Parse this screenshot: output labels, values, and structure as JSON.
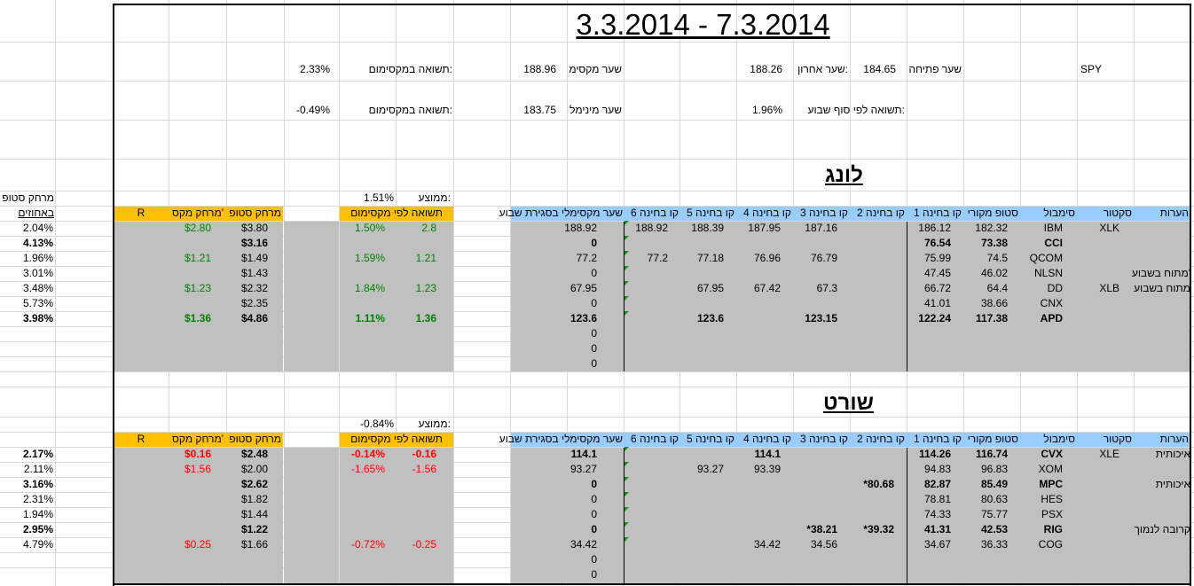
{
  "title": "3.3.2014 - 7.3.2014",
  "spy": {
    "symbol": "SPY",
    "open_label": "שער פתיחה",
    "open_value": "184.65",
    "last_label": "שער אחרון:",
    "last_value": "188.26",
    "max_label": "שער מקסימ",
    "max_value": "188.96",
    "max_return_label": "תשואה במקסימום:",
    "max_return_value": "2.33%",
    "week_return_label": "תשואה לפי סוף שבוע:",
    "week_return_value": "1.96%",
    "min_label": "שער מינימל",
    "min_value": "183.75",
    "min_return_label": "תשואה במקסימום:",
    "min_return_value": "-0.49%"
  },
  "long": {
    "section_title": "לונג",
    "avg_label": "ממוצע:",
    "avg_value": "1.51%",
    "headers": {
      "notes": "הערות",
      "sector": "סקטור",
      "symbol": "סימבול",
      "orig_stop": "סטופ מקורי",
      "l1": "קו בחינה 1",
      "l2": "קו בחינה 2",
      "l3": "קו בחינה 3",
      "l4": "קו בחינה 4",
      "l5": "קו בחינה 5",
      "l6": "קו בחינה 6",
      "max_close": "שער מקסימלי בסגירת שבוע",
      "ret_by_max": "תשואה לפי מקסימום",
      "stop_dist": "מרחק סטופ",
      "max_dist": "מרחק מקס'",
      "r": "R",
      "stop_pct_a": "מרחק סטופ",
      "stop_pct_b": "באחוזים"
    },
    "rows": [
      {
        "notes": "",
        "sector": "XLK",
        "symbol": "IBM",
        "orig_stop": "182.32",
        "l1": "186.12",
        "l2": "",
        "l3": "187.16",
        "l4": "187.95",
        "l5": "188.39",
        "l6": "188.92",
        "max_close": "188.92",
        "r": "2.8",
        "ret": "1.50%",
        "stop_dist": "$3.80",
        "max_dist": "$2.80",
        "stop_pct": "2.04%",
        "bold": false
      },
      {
        "notes": "",
        "sector": "",
        "symbol": "CCI",
        "orig_stop": "73.38",
        "l1": "76.54",
        "l2": "",
        "l3": "",
        "l4": "",
        "l5": "",
        "l6": "",
        "max_close": "0",
        "r": "",
        "ret": "",
        "stop_dist": "$3.16",
        "max_dist": "",
        "stop_pct": "4.13%",
        "bold": true
      },
      {
        "notes": "",
        "sector": "",
        "symbol": "QCOM",
        "orig_stop": "74.5",
        "l1": "75.99",
        "l2": "",
        "l3": "76.79",
        "l4": "76.96",
        "l5": "77.18",
        "l6": "77.2",
        "max_close": "77.2",
        "r": "1.21",
        "ret": "1.59%",
        "stop_dist": "$1.49",
        "max_dist": "$1.21",
        "stop_pct": "1.96%",
        "bold": false
      },
      {
        "notes": "מתוח בשבוע'",
        "sector": "",
        "symbol": "NLSN",
        "orig_stop": "46.02",
        "l1": "47.45",
        "l2": "",
        "l3": "",
        "l4": "",
        "l5": "",
        "l6": "",
        "max_close": "0",
        "r": "",
        "ret": "",
        "stop_dist": "$1.43",
        "max_dist": "",
        "stop_pct": "3.01%",
        "bold": false
      },
      {
        "notes": "מתוח בשבוע",
        "sector": "XLB",
        "symbol": "DD",
        "orig_stop": "64.4",
        "l1": "66.72",
        "l2": "",
        "l3": "67.3",
        "l4": "67.42",
        "l5": "67.95",
        "l6": "",
        "max_close": "67.95",
        "r": "1.23",
        "ret": "1.84%",
        "stop_dist": "$2.32",
        "max_dist": "$1.23",
        "stop_pct": "3.48%",
        "bold": false
      },
      {
        "notes": "",
        "sector": "",
        "symbol": "CNX",
        "orig_stop": "38.66",
        "l1": "41.01",
        "l2": "",
        "l3": "",
        "l4": "",
        "l5": "",
        "l6": "",
        "max_close": "0",
        "r": "",
        "ret": "",
        "stop_dist": "$2.35",
        "max_dist": "",
        "stop_pct": "5.73%",
        "bold": false
      },
      {
        "notes": "",
        "sector": "",
        "symbol": "APD",
        "orig_stop": "117.38",
        "l1": "122.24",
        "l2": "",
        "l3": "123.15",
        "l4": "",
        "l5": "123.6",
        "l6": "",
        "max_close": "123.6",
        "r": "1.36",
        "ret": "1.11%",
        "stop_dist": "$4.86",
        "max_dist": "$1.36",
        "stop_pct": "3.98%",
        "bold": true
      }
    ],
    "extra_zeros": [
      "0",
      "0",
      "0"
    ]
  },
  "short": {
    "section_title": "שורט",
    "avg_label": "ממוצע:",
    "avg_value": "-0.84%",
    "rows": [
      {
        "notes": "איכותית",
        "sector": "XLE",
        "symbol": "CVX",
        "orig_stop": "116.74",
        "l1": "114.26",
        "l2": "",
        "l3": "",
        "l4": "114.1",
        "l5": "",
        "l6": "",
        "max_close": "114.1",
        "r": "-0.16",
        "ret": "-0.14%",
        "stop_dist": "$2.48",
        "max_dist": "$0.16",
        "stop_pct": "2.17%",
        "bold": true
      },
      {
        "notes": "",
        "sector": "",
        "symbol": "XOM",
        "orig_stop": "96.83",
        "l1": "94.83",
        "l2": "",
        "l3": "",
        "l4": "93.39",
        "l5": "93.27",
        "l6": "",
        "max_close": "93.27",
        "r": "-1.56",
        "ret": "-1.65%",
        "stop_dist": "$2.00",
        "max_dist": "$1.56",
        "stop_pct": "2.11%",
        "bold": false
      },
      {
        "notes": "איכותית",
        "sector": "",
        "symbol": "MPC",
        "orig_stop": "85.49",
        "l1": "82.87",
        "l2": "*80.68",
        "l3": "",
        "l4": "",
        "l5": "",
        "l6": "",
        "max_close": "0",
        "r": "",
        "ret": "",
        "stop_dist": "$2.62",
        "max_dist": "",
        "stop_pct": "3.16%",
        "bold": true
      },
      {
        "notes": "",
        "sector": "",
        "symbol": "HES",
        "orig_stop": "80.63",
        "l1": "78.81",
        "l2": "",
        "l3": "",
        "l4": "",
        "l5": "",
        "l6": "",
        "max_close": "0",
        "r": "",
        "ret": "",
        "stop_dist": "$1.82",
        "max_dist": "",
        "stop_pct": "2.31%",
        "bold": false
      },
      {
        "notes": "",
        "sector": "",
        "symbol": "PSX",
        "orig_stop": "75.77",
        "l1": "74.33",
        "l2": "",
        "l3": "",
        "l4": "",
        "l5": "",
        "l6": "",
        "max_close": "0",
        "r": "",
        "ret": "",
        "stop_dist": "$1.44",
        "max_dist": "",
        "stop_pct": "1.94%",
        "bold": false
      },
      {
        "notes": "קרובה לנמוך",
        "sector": "",
        "symbol": "RIG",
        "orig_stop": "42.53",
        "l1": "41.31",
        "l2": "*39.32",
        "l3": "*38.21",
        "l4": "",
        "l5": "",
        "l6": "",
        "max_close": "0",
        "r": "",
        "ret": "",
        "stop_dist": "$1.22",
        "max_dist": "",
        "stop_pct": "2.95%",
        "bold": true
      },
      {
        "notes": "",
        "sector": "",
        "symbol": "COG",
        "orig_stop": "36.33",
        "l1": "34.67",
        "l2": "",
        "l3": "34.56",
        "l4": "34.42",
        "l5": "",
        "l6": "",
        "max_close": "34.42",
        "r": "-0.25",
        "ret": "-0.72%",
        "stop_dist": "$1.66",
        "max_dist": "$0.25",
        "stop_pct": "4.79%",
        "bold": false
      }
    ],
    "extra_zeros": [
      "0",
      "0"
    ]
  },
  "colors": {
    "header_blue": "#99ccff",
    "header_orange": "#ffc000",
    "data_gray": "#c0c0c0",
    "positive": "#008000",
    "negative": "#ff0000"
  }
}
